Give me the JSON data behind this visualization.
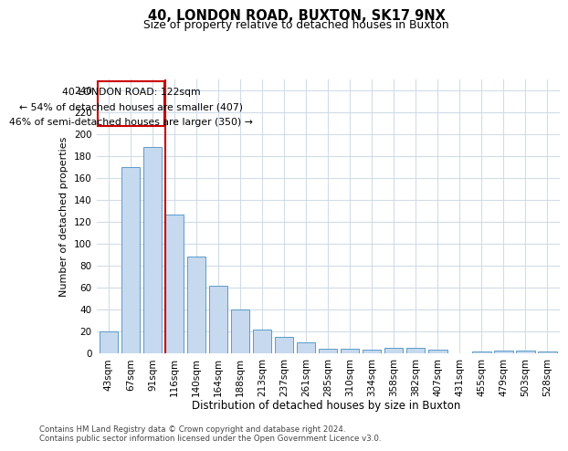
{
  "title": "40, LONDON ROAD, BUXTON, SK17 9NX",
  "subtitle": "Size of property relative to detached houses in Buxton",
  "xlabel": "Distribution of detached houses by size in Buxton",
  "ylabel": "Number of detached properties",
  "categories": [
    "43sqm",
    "67sqm",
    "91sqm",
    "116sqm",
    "140sqm",
    "164sqm",
    "188sqm",
    "213sqm",
    "237sqm",
    "261sqm",
    "285sqm",
    "310sqm",
    "334sqm",
    "358sqm",
    "382sqm",
    "407sqm",
    "431sqm",
    "455sqm",
    "479sqm",
    "503sqm",
    "528sqm"
  ],
  "values": [
    20,
    170,
    188,
    126,
    88,
    61,
    40,
    21,
    15,
    10,
    4,
    4,
    3,
    5,
    5,
    3,
    0,
    1,
    2,
    2,
    1
  ],
  "bar_color": "#c6d9ee",
  "bar_edge_color": "#5b9bca",
  "grid_color": "#d0dce8",
  "vline_color": "#cc0000",
  "ann_box_color": "#cc0000",
  "annotation_line1": "40 LONDON ROAD: 122sqm",
  "annotation_line2": "← 54% of detached houses are smaller (407)",
  "annotation_line3": "46% of semi-detached houses are larger (350) →",
  "ylim": [
    0,
    250
  ],
  "yticks": [
    0,
    20,
    40,
    60,
    80,
    100,
    120,
    140,
    160,
    180,
    200,
    220,
    240
  ],
  "footer_line1": "Contains HM Land Registry data © Crown copyright and database right 2024.",
  "footer_line2": "Contains public sector information licensed under the Open Government Licence v3.0.",
  "bg_color": "#ffffff"
}
